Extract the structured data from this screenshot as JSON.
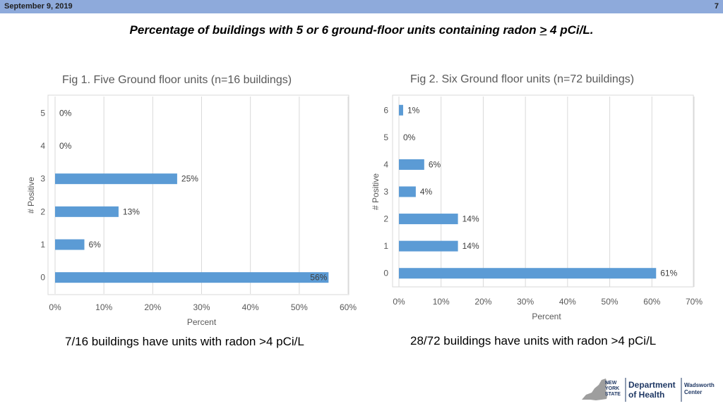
{
  "header": {
    "date": "September 9, 2019",
    "page_number": "7"
  },
  "slide_title": {
    "before": "Percentage of buildings with 5 or 6 ground-floor units containing radon ",
    "underlined": ">",
    "after": " 4 pCi/L."
  },
  "captions": {
    "fig1": "7/16 buildings have units with radon >4 pCi/L",
    "fig2": "28/72 buildings have units with radon >4 pCi/L"
  },
  "logo": {
    "state_lines": [
      "NEW",
      "YORK",
      "STATE"
    ],
    "dept_lines": [
      "Department",
      "of Health"
    ],
    "center_lines": [
      "Wadsworth",
      "Center"
    ]
  },
  "colors": {
    "bar": "#5b9bd5",
    "header_bar": "#8eaadb"
  },
  "chart_data": [
    {
      "type": "bar",
      "orientation": "horizontal",
      "title": "Fig 1. Five Ground floor units (n=16 buildings)",
      "categories": [
        "0",
        "1",
        "2",
        "3",
        "4",
        "5"
      ],
      "values": [
        56,
        6,
        13,
        25,
        0,
        0
      ],
      "data_labels": [
        "56%",
        "6%",
        "13%",
        "25%",
        "0%",
        "0%"
      ],
      "xlabel": "Percent",
      "ylabel": "# Positive",
      "xlim": [
        0,
        60
      ],
      "x_ticks": [
        "0%",
        "10%",
        "20%",
        "30%",
        "40%",
        "50%",
        "60%"
      ],
      "grid": true
    },
    {
      "type": "bar",
      "orientation": "horizontal",
      "title": "Fig 2. Six Ground floor units (n=72 buildings)",
      "categories": [
        "0",
        "1",
        "2",
        "3",
        "4",
        "5",
        "6"
      ],
      "values": [
        61,
        14,
        14,
        4,
        6,
        0,
        1
      ],
      "data_labels": [
        "61%",
        "14%",
        "14%",
        "4%",
        "6%",
        "0%",
        "1%"
      ],
      "xlabel": "Percent",
      "ylabel": "# Positive",
      "xlim": [
        0,
        70
      ],
      "x_ticks": [
        "0%",
        "10%",
        "20%",
        "30%",
        "40%",
        "50%",
        "60%",
        "70%"
      ],
      "grid": true
    }
  ]
}
